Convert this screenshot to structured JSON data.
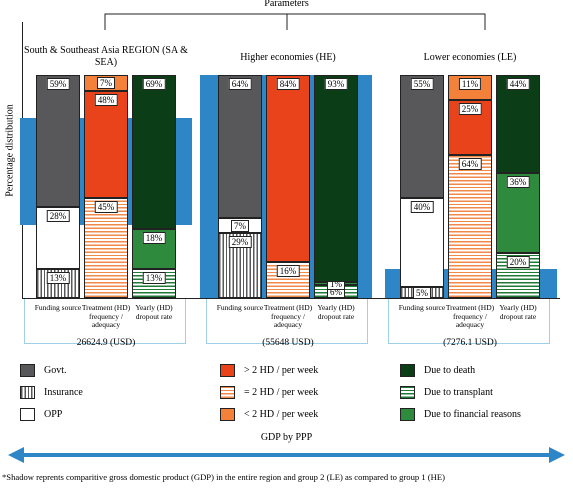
{
  "chart_data": {
    "type": "bar",
    "title": "Parameters",
    "y_label": "Percentage distribution",
    "x_label": "GDP by PPP",
    "footnote": "*Shadow reprents comparitive gross domestic product (GDP) in the entire region and group 2 (LE) as compared to group 1 (HE)",
    "ylim": [
      0,
      100
    ],
    "shadow_color": "#2f86c6",
    "stacks": [
      {
        "label": "Funding source",
        "series": [
          {
            "name": "Govt.",
            "color": "#58585a",
            "hatch": "none"
          },
          {
            "name": "Insurance",
            "color": "#58585a",
            "hatch": "vertical"
          },
          {
            "name": "OPP",
            "color": "#ffffff",
            "hatch": "none"
          }
        ]
      },
      {
        "label": "Treatment (HD) frequency / adequacy",
        "series": [
          {
            "name": "> 2 HD / per week",
            "color": "#e8431a",
            "hatch": "none"
          },
          {
            "name": "= 2 HD / per week",
            "color": "#f08a4b",
            "hatch": "horizontal"
          },
          {
            "name": "< 2 HD / per week",
            "color": "#f4813a",
            "hatch": "none"
          }
        ]
      },
      {
        "label": "Yearly (HD) dropout rate",
        "series": [
          {
            "name": "Due to death",
            "color": "#0b3d17",
            "hatch": "none"
          },
          {
            "name": "Due to transplant",
            "color": "#1f7a35",
            "hatch": "horizontal"
          },
          {
            "name": "Due to financial reasons",
            "color": "#2e8b3e",
            "hatch": "none"
          }
        ]
      }
    ],
    "groups": [
      {
        "name": "South & Southeast Asia REGION (SA & SEA)",
        "gdp": 26624.9,
        "gdp_label": "26624.9 (USD)",
        "values": [
          [
            59,
            13,
            28
          ],
          [
            48,
            45,
            7
          ],
          [
            69,
            13,
            18
          ]
        ],
        "value_labels": [
          [
            "59%",
            "13%",
            "28%"
          ],
          [
            "48%",
            "45%",
            "7%"
          ],
          [
            "69%",
            "13%",
            "18%"
          ]
        ]
      },
      {
        "name": "Higher economies (HE)",
        "gdp": 55648,
        "gdp_label": "(55648 USD)",
        "values": [
          [
            64,
            29,
            7
          ],
          [
            84,
            16,
            null
          ],
          [
            93,
            6,
            1
          ]
        ],
        "value_labels": [
          [
            "64%",
            "29%",
            "7%"
          ],
          [
            "84%",
            "16%",
            null
          ],
          [
            "93%",
            "6%",
            "1%"
          ]
        ]
      },
      {
        "name": "Lower economies (LE)",
        "gdp": 7276.1,
        "gdp_label": "(7276.1 USD)",
        "values": [
          [
            55,
            5,
            40
          ],
          [
            25,
            64,
            11
          ],
          [
            44,
            20,
            36
          ]
        ],
        "value_labels": [
          [
            "55%",
            "5%",
            "40%"
          ],
          [
            "25%",
            "64%",
            "11%"
          ],
          [
            "44%",
            "20%",
            "36%"
          ]
        ]
      }
    ]
  }
}
